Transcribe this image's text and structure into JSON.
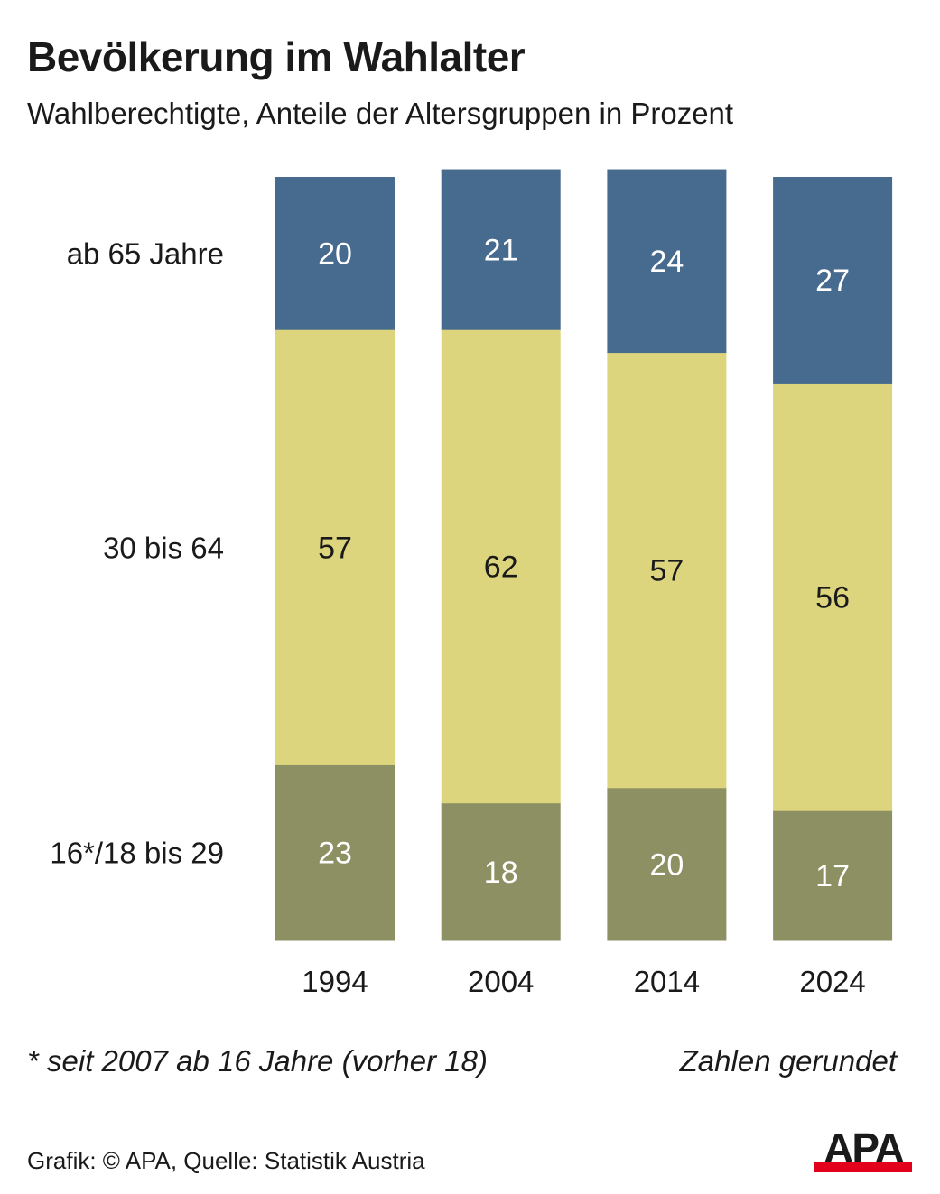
{
  "header": {
    "title": "Bevölkerung im Wahlalter",
    "subtitle": "Wahlberechtigte, Anteile der Altersgruppen in Prozent"
  },
  "chart_data": {
    "type": "bar",
    "stacked": true,
    "orientation": "vertical",
    "title": "Bevölkerung im Wahlalter",
    "subtitle": "Wahlberechtigte, Anteile der Altersgruppen in Prozent",
    "xlabel": "",
    "ylabel": "",
    "categories": [
      "1994",
      "2004",
      "2014",
      "2024"
    ],
    "series": [
      {
        "name": "16*/18 bis 29",
        "color": "#8d9063",
        "label_color": "#ffffff",
        "values": [
          23,
          18,
          20,
          17
        ]
      },
      {
        "name": "30 bis 64",
        "color": "#ddd57d",
        "label_color": "#1a1a1a",
        "values": [
          57,
          62,
          57,
          56
        ]
      },
      {
        "name": "ab 65 Jahre",
        "color": "#476a8f",
        "label_color": "#ffffff",
        "values": [
          20,
          21,
          24,
          27
        ]
      }
    ],
    "ylim": [
      0,
      100
    ],
    "grid": false,
    "legend": "left (row labels)"
  },
  "notes": {
    "footnote": "* seit 2007 ab 16 Jahre (vorher 18)",
    "rounded": "Zahlen gerundet",
    "source": "Grafik: © APA, Quelle: Statistik Austria"
  },
  "logo": {
    "text": "APA",
    "accent": "#e3001b"
  }
}
